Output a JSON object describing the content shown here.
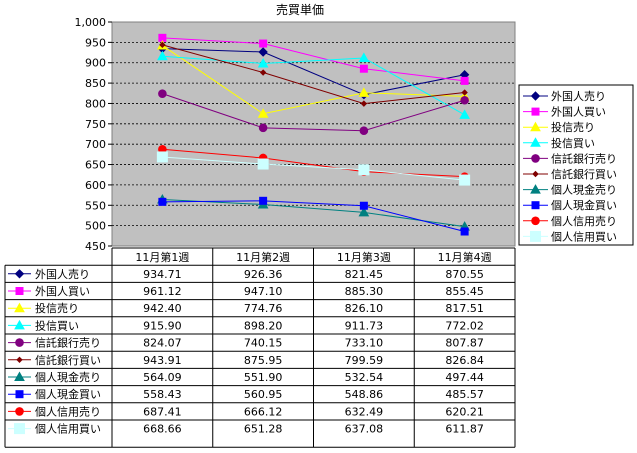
{
  "chart_data": {
    "type": "line",
    "title": "売買単価",
    "xlabel": "",
    "ylabel": "",
    "ylim": [
      450,
      1000
    ],
    "yticks": [
      "450",
      "500",
      "550",
      "600",
      "650",
      "700",
      "750",
      "800",
      "850",
      "900",
      "950",
      "1,000"
    ],
    "categories": [
      "11月第1週",
      "11月第2週",
      "11月第3週",
      "11月第4週"
    ],
    "grid": true,
    "legend": "right",
    "series": [
      {
        "name": "外国人売り",
        "color": "#000080",
        "marker": "diamond",
        "values": [
          934.71,
          926.36,
          821.45,
          870.55
        ],
        "labels": [
          "934.71",
          "926.36",
          "821.45",
          "870.55"
        ]
      },
      {
        "name": "外国人買い",
        "color": "#ff00ff",
        "marker": "square",
        "values": [
          961.12,
          947.1,
          885.3,
          855.45
        ],
        "labels": [
          "961.12",
          "947.10",
          "885.30",
          "855.45"
        ]
      },
      {
        "name": "投信売り",
        "color": "#ffff00",
        "marker": "triangle",
        "values": [
          942.4,
          774.76,
          826.1,
          817.51
        ],
        "labels": [
          "942.40",
          "774.76",
          "826.10",
          "817.51"
        ]
      },
      {
        "name": "投信買い",
        "color": "#00ffff",
        "marker": "triangle",
        "values": [
          915.9,
          898.2,
          911.73,
          772.02
        ],
        "labels": [
          "915.90",
          "898.20",
          "911.73",
          "772.02"
        ]
      },
      {
        "name": "信託銀行売り",
        "color": "#800080",
        "marker": "circle",
        "values": [
          824.07,
          740.15,
          733.1,
          807.87
        ],
        "labels": [
          "824.07",
          "740.15",
          "733.10",
          "807.87"
        ]
      },
      {
        "name": "信託銀行買い",
        "color": "#800000",
        "marker": "smalldiamond",
        "values": [
          943.91,
          875.95,
          799.59,
          826.84
        ],
        "labels": [
          "943.91",
          "875.95",
          "799.59",
          "826.84"
        ]
      },
      {
        "name": "個人現金売り",
        "color": "#008080",
        "marker": "triangle",
        "values": [
          564.09,
          551.9,
          532.54,
          497.44
        ],
        "labels": [
          "564.09",
          "551.90",
          "532.54",
          "497.44"
        ]
      },
      {
        "name": "個人現金買い",
        "color": "#0000ff",
        "marker": "square",
        "values": [
          558.43,
          560.95,
          548.86,
          485.57
        ],
        "labels": [
          "558.43",
          "560.95",
          "548.86",
          "485.57"
        ]
      },
      {
        "name": "個人信用売り",
        "color": "#ff0000",
        "marker": "circle",
        "values": [
          687.41,
          666.12,
          632.49,
          620.21
        ],
        "labels": [
          "687.41",
          "666.12",
          "632.49",
          "620.21"
        ]
      },
      {
        "name": "個人信用買い",
        "color": "#ccffff",
        "marker": "bigsquare",
        "values": [
          668.66,
          651.28,
          637.08,
          611.87
        ],
        "labels": [
          "668.66",
          "651.28",
          "637.08",
          "611.87"
        ]
      }
    ]
  }
}
